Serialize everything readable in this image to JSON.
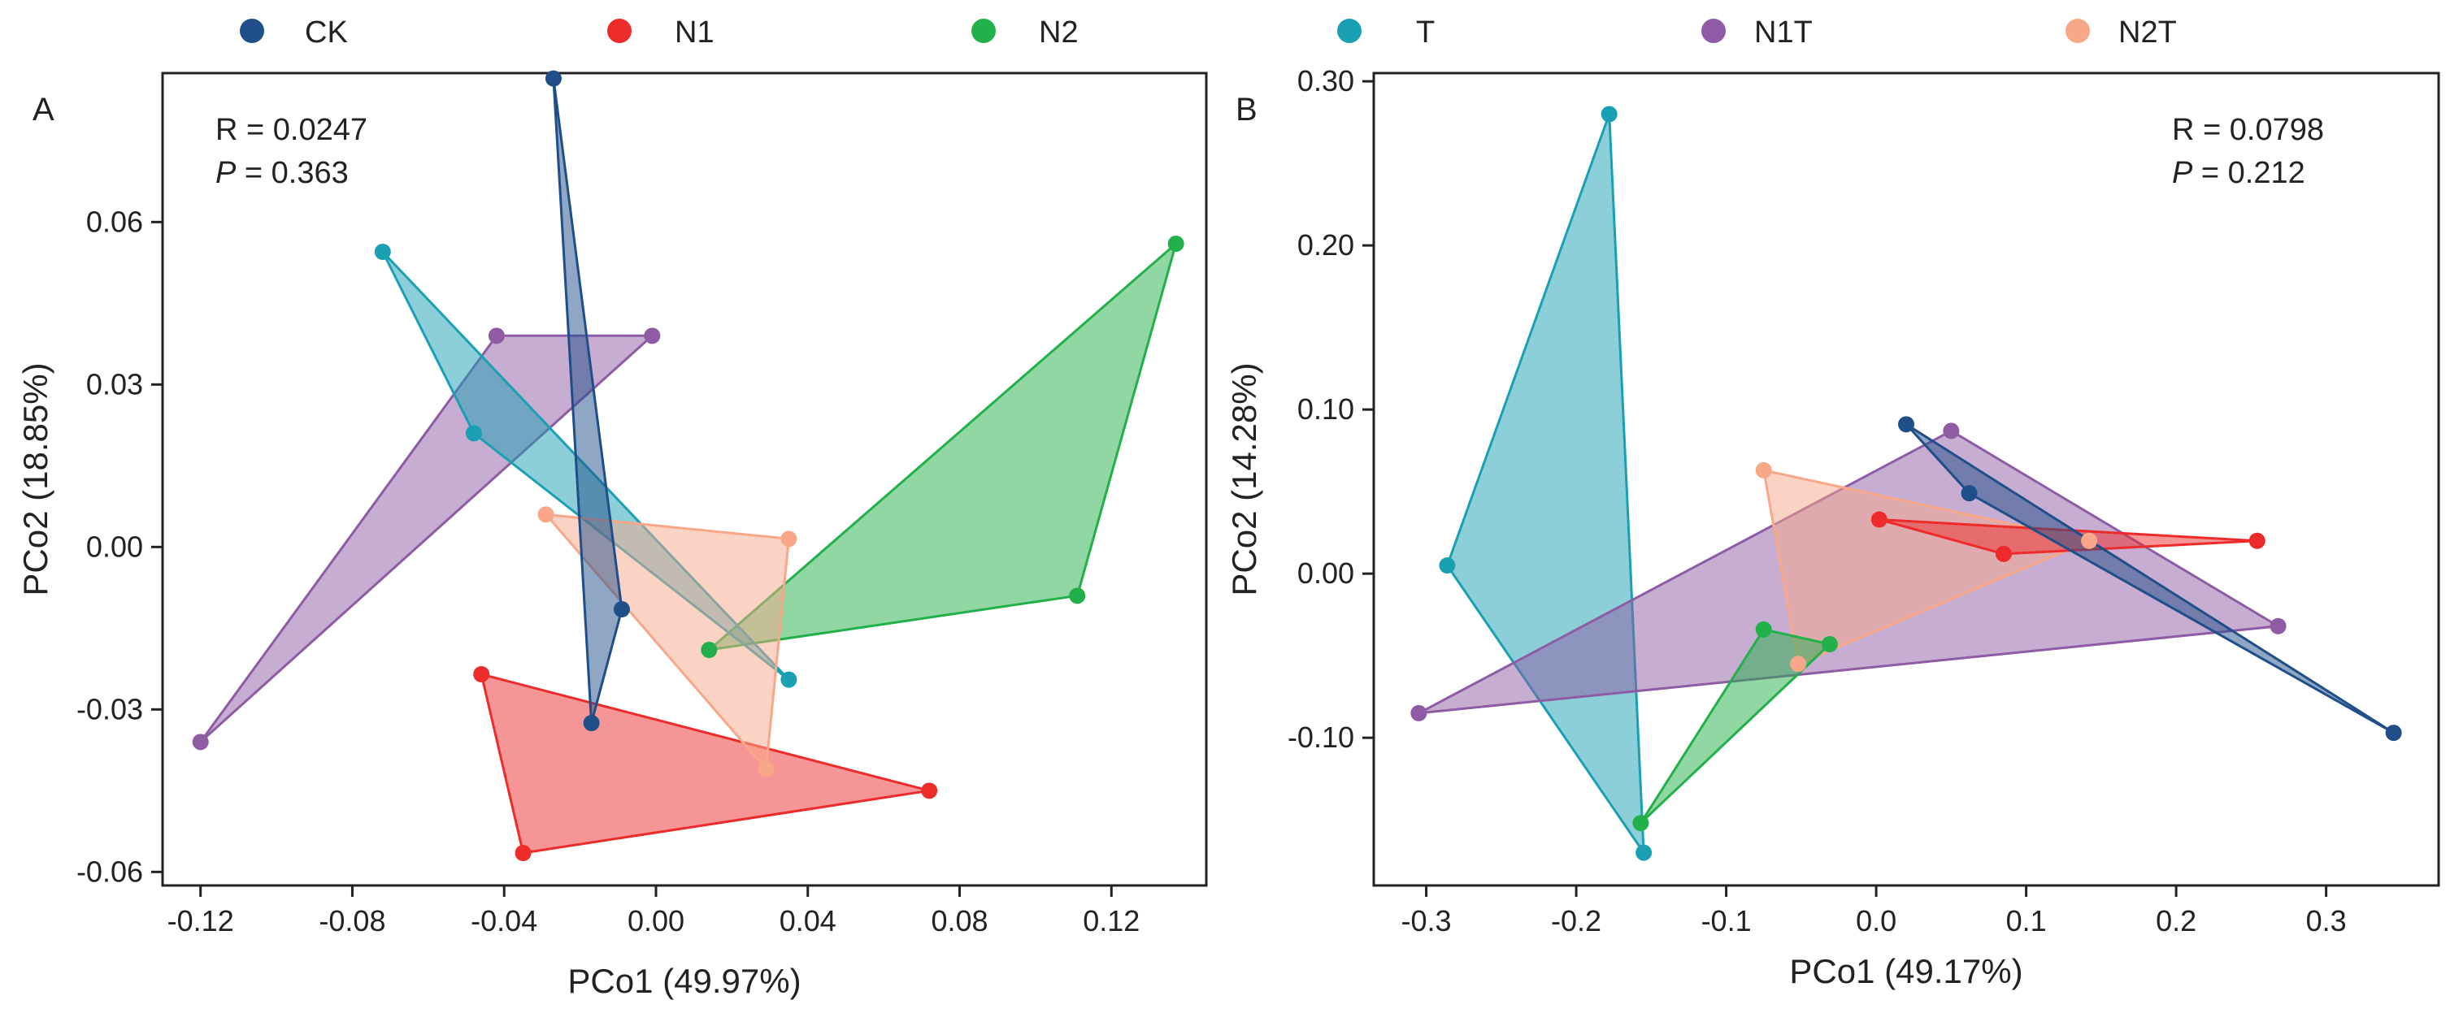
{
  "legend": [
    {
      "name": "CK",
      "color": "#1f4e89"
    },
    {
      "name": "N1",
      "color": "#ee2b2b"
    },
    {
      "name": "N2",
      "color": "#22b04a"
    },
    {
      "name": "T",
      "color": "#1aa0b3"
    },
    {
      "name": "N1T",
      "color": "#8e5ba4"
    },
    {
      "name": "N2T",
      "color": "#f8a889"
    }
  ],
  "chart_data": [
    {
      "type": "scatter",
      "panel": "A",
      "xlabel": "PCo1 (49.97%)",
      "ylabel": "PCo2 (18.85%)",
      "xlim": [
        -0.13,
        0.145
      ],
      "ylim": [
        -0.0625,
        0.0875
      ],
      "xticks": [
        {
          "v": -0.12,
          "label": "-0.12"
        },
        {
          "v": -0.08,
          "label": "-0.08"
        },
        {
          "v": -0.04,
          "label": "-0.04"
        },
        {
          "v": 0.0,
          "label": "0.00"
        },
        {
          "v": 0.04,
          "label": "0.04"
        },
        {
          "v": 0.08,
          "label": "0.08"
        },
        {
          "v": 0.12,
          "label": "0.12"
        }
      ],
      "yticks": [
        {
          "v": -0.06,
          "label": "-0.06"
        },
        {
          "v": -0.03,
          "label": "-0.03"
        },
        {
          "v": 0.0,
          "label": "0.00"
        },
        {
          "v": 0.03,
          "label": "0.03"
        },
        {
          "v": 0.06,
          "label": "0.06"
        }
      ],
      "stat_r": "R = 0.0247",
      "stat_p_label": "P",
      "stat_p_value": " = 0.363",
      "series": [
        {
          "name": "N1",
          "points": [
            [
              -0.046,
              -0.0235
            ],
            [
              -0.035,
              -0.0565
            ],
            [
              0.072,
              -0.045
            ]
          ]
        },
        {
          "name": "N1T",
          "points": [
            [
              -0.12,
              -0.036
            ],
            [
              -0.042,
              0.039
            ],
            [
              -0.001,
              0.039
            ]
          ]
        },
        {
          "name": "N2",
          "points": [
            [
              0.014,
              -0.019
            ],
            [
              0.111,
              -0.009
            ],
            [
              0.137,
              0.056
            ]
          ]
        },
        {
          "name": "T",
          "points": [
            [
              -0.072,
              0.0545
            ],
            [
              -0.048,
              0.021
            ],
            [
              0.035,
              -0.0245
            ]
          ]
        },
        {
          "name": "N2T",
          "points": [
            [
              -0.029,
              0.006
            ],
            [
              0.035,
              0.0015
            ],
            [
              0.029,
              -0.041
            ]
          ]
        },
        {
          "name": "CK",
          "points": [
            [
              -0.027,
              0.0865
            ],
            [
              -0.009,
              -0.0115
            ],
            [
              -0.017,
              -0.0325
            ]
          ]
        }
      ]
    },
    {
      "type": "scatter",
      "panel": "B",
      "xlabel": "PCo1 (49.17%)",
      "ylabel": "PCo2 (14.28%)",
      "xlim": [
        -0.335,
        0.375
      ],
      "ylim": [
        -0.19,
        0.305
      ],
      "xticks": [
        {
          "v": -0.3,
          "label": "-0.3"
        },
        {
          "v": -0.2,
          "label": "-0.2"
        },
        {
          "v": -0.1,
          "label": "-0.1"
        },
        {
          "v": 0.0,
          "label": "0.0"
        },
        {
          "v": 0.1,
          "label": "0.1"
        },
        {
          "v": 0.2,
          "label": "0.2"
        },
        {
          "v": 0.3,
          "label": "0.3"
        }
      ],
      "yticks": [
        {
          "v": -0.1,
          "label": "-0.10"
        },
        {
          "v": 0.0,
          "label": "0.00"
        },
        {
          "v": 0.1,
          "label": "0.10"
        },
        {
          "v": 0.2,
          "label": "0.20"
        },
        {
          "v": 0.3,
          "label": "0.30"
        }
      ],
      "stat_r": "R = 0.0798",
      "stat_p_label": "P",
      "stat_p_value": " = 0.212",
      "series": [
        {
          "name": "T",
          "points": [
            [
              -0.178,
              0.28
            ],
            [
              -0.286,
              0.005
            ],
            [
              -0.155,
              -0.17
            ]
          ]
        },
        {
          "name": "N1T",
          "points": [
            [
              -0.305,
              -0.085
            ],
            [
              0.05,
              0.087
            ],
            [
              0.268,
              -0.032
            ]
          ]
        },
        {
          "name": "N2T",
          "points": [
            [
              -0.075,
              0.063
            ],
            [
              0.142,
              0.02
            ],
            [
              -0.052,
              -0.055
            ]
          ]
        },
        {
          "name": "N1",
          "points": [
            [
              0.002,
              0.033
            ],
            [
              0.085,
              0.012
            ],
            [
              0.254,
              0.02
            ]
          ]
        },
        {
          "name": "N2",
          "points": [
            [
              -0.075,
              -0.034
            ],
            [
              -0.031,
              -0.043
            ],
            [
              -0.157,
              -0.152
            ]
          ]
        },
        {
          "name": "CK",
          "points": [
            [
              0.02,
              0.091
            ],
            [
              0.062,
              0.049
            ],
            [
              0.345,
              -0.097
            ]
          ]
        }
      ]
    }
  ]
}
